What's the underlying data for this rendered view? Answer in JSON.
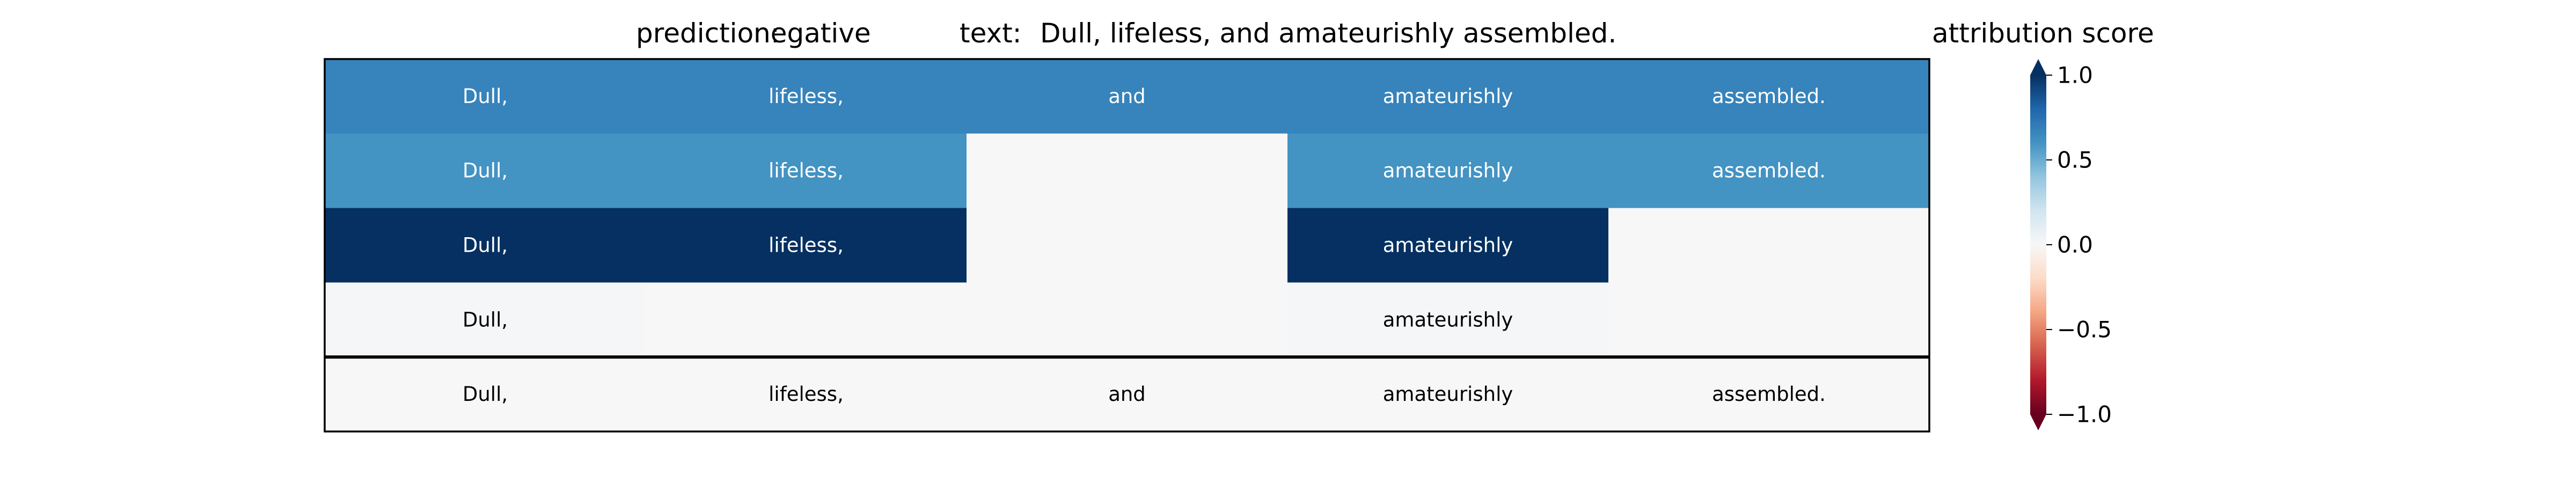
{
  "header": {
    "prediction_label": "prediction:",
    "prediction_value": "negative",
    "text_label": "text:",
    "text_value": "Dull, lifeless, and amateurishly assembled."
  },
  "colorbar": {
    "title": "attribution score",
    "ticks": [
      "1.0",
      "0.5",
      "0.0",
      "−0.5",
      "−1.0"
    ],
    "tick_values": [
      1.0,
      0.5,
      0.0,
      -0.5,
      -1.0
    ],
    "colors": [
      "#053061",
      "#2166ac",
      "#4393c3",
      "#92c5de",
      "#d1e5f0",
      "#f7f7f7",
      "#fddbc7",
      "#f4a582",
      "#d6604d",
      "#b2182b",
      "#67001f"
    ]
  },
  "chart_data": {
    "type": "heatmap",
    "tokens": [
      "Dull,",
      "lifeless,",
      "and",
      "amateurishly",
      "assembled."
    ],
    "rows": [
      {
        "values": [
          0.67,
          0.67,
          0.67,
          0.67,
          0.67
        ],
        "show": [
          true,
          true,
          true,
          true,
          true
        ],
        "light_text": true
      },
      {
        "values": [
          0.6,
          0.6,
          0.0,
          0.6,
          0.6
        ],
        "show": [
          true,
          true,
          false,
          true,
          true
        ],
        "light_text": true
      },
      {
        "values": [
          1.0,
          1.0,
          0.0,
          1.0,
          0.0
        ],
        "show": [
          true,
          true,
          false,
          true,
          false
        ],
        "light_text": true
      },
      {
        "values": [
          0.01,
          0.0,
          0.0,
          0.01,
          0.0
        ],
        "show": [
          true,
          false,
          false,
          true,
          false
        ],
        "light_text": false
      },
      {
        "values": [
          0.0,
          0.0,
          0.0,
          0.0,
          0.0
        ],
        "show": [
          true,
          true,
          true,
          true,
          true
        ],
        "light_text": false
      }
    ],
    "separator_before_last_row": true,
    "vmin": -1.0,
    "vmax": 1.0,
    "colormap": "RdBu",
    "grid": false
  }
}
